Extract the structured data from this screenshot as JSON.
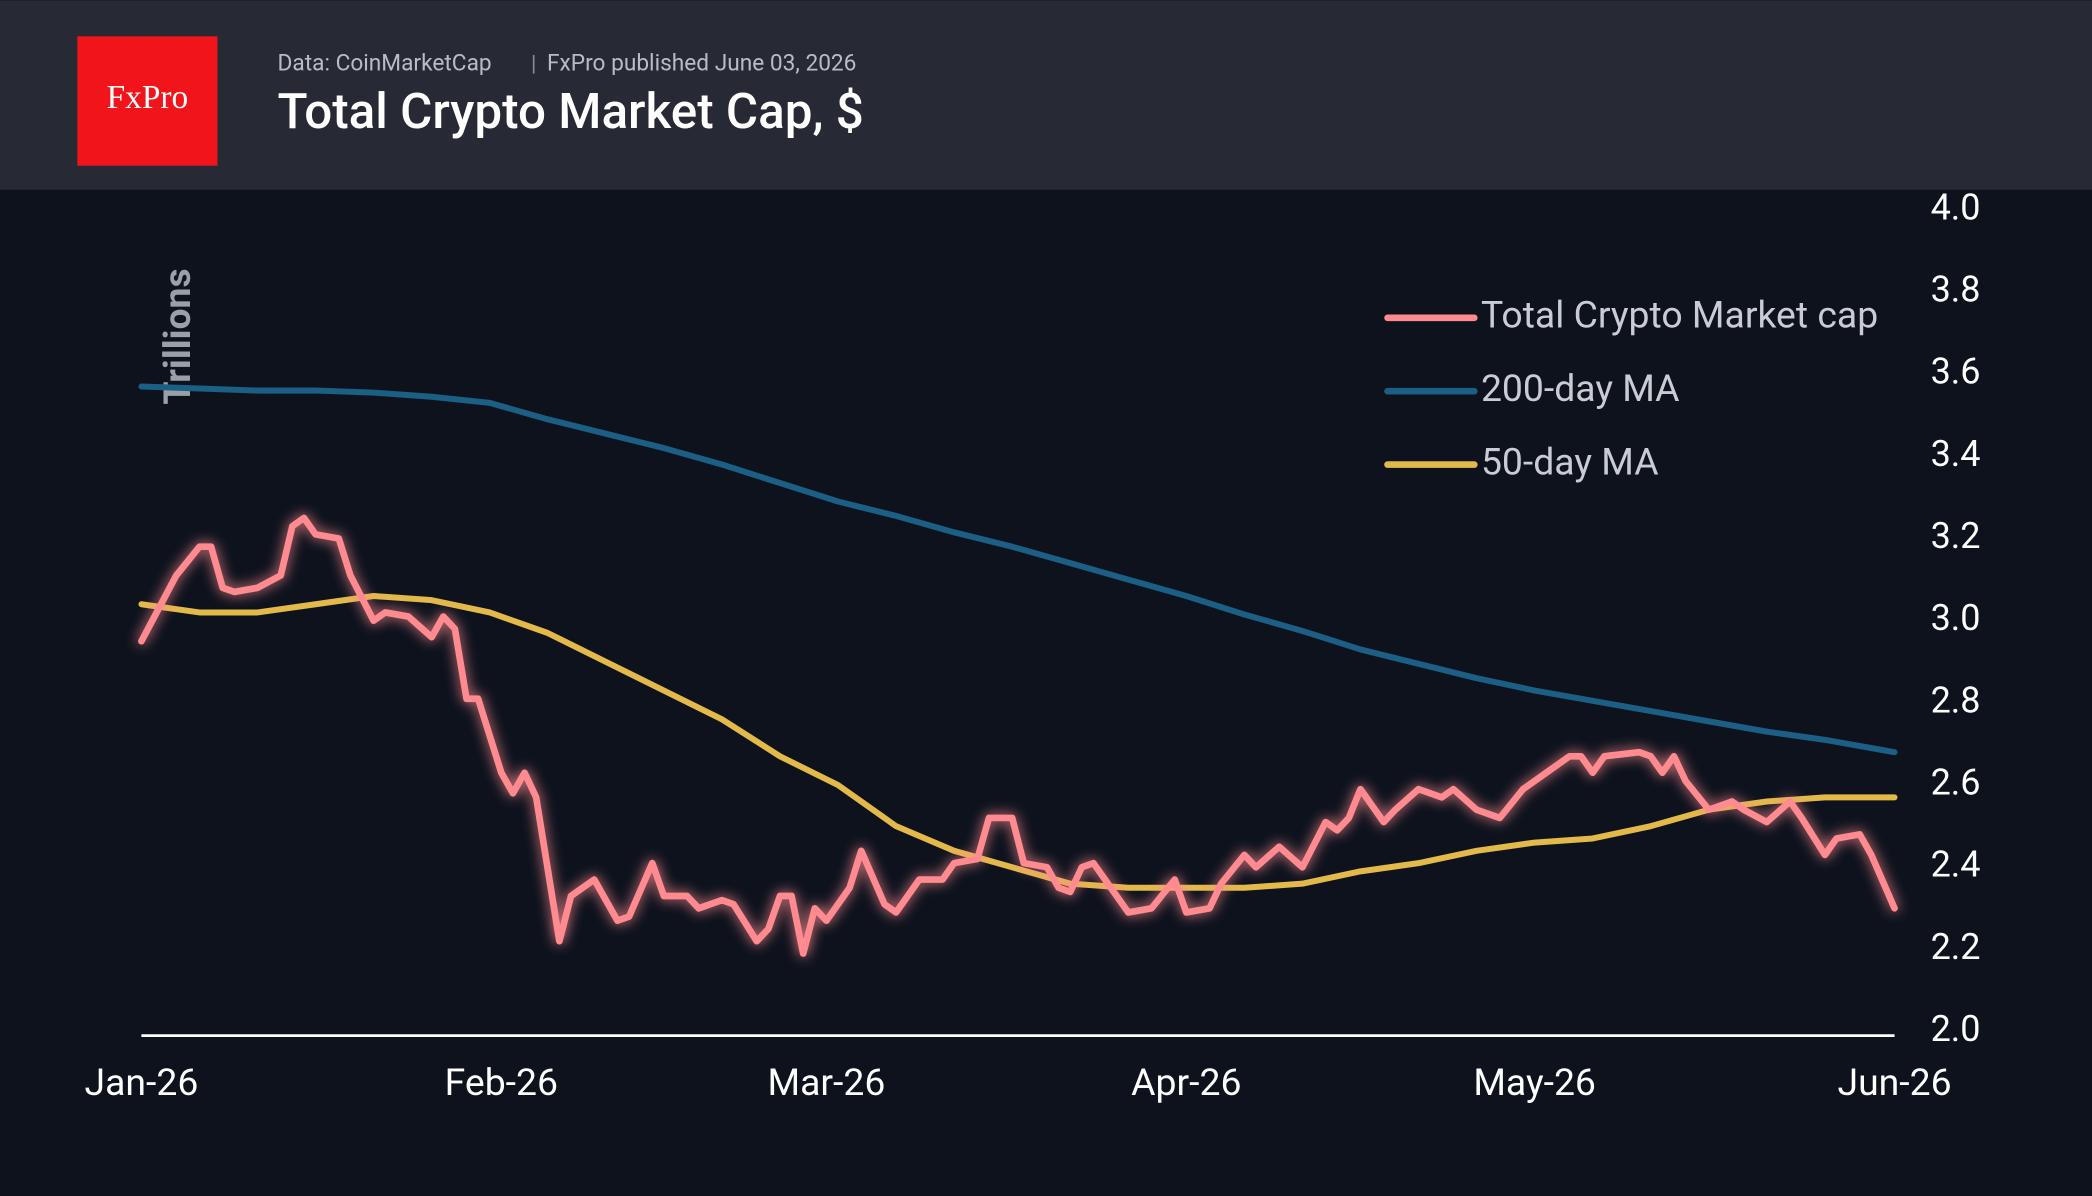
{
  "brand": "FxPro",
  "chart_data": {
    "type": "line",
    "title": "Total Crypto Market Cap, $",
    "source": "Data: CoinMarketCap",
    "subtitle": "FxPro published June 03, 2026",
    "ylabel": "Trillions",
    "xlim": [
      0,
      151
    ],
    "xticks": [
      {
        "value": 0,
        "label": "Jan-26"
      },
      {
        "value": 31,
        "label": "Feb-26"
      },
      {
        "value": 59,
        "label": "Mar-26"
      },
      {
        "value": 90,
        "label": "Apr-26"
      },
      {
        "value": 120,
        "label": "May-26"
      },
      {
        "value": 151,
        "label": "Jun-26"
      }
    ],
    "ylim": [
      2.0,
      4.0
    ],
    "yticks": [
      {
        "value": 2.0,
        "label": "2.0"
      },
      2.2,
      2.4,
      2.6,
      2.8,
      {
        "value": 3.0,
        "label": "3.0"
      },
      3.2,
      3.4,
      3.6,
      3.8,
      {
        "value": 4.0,
        "label": "4.0"
      }
    ],
    "legend": "top-right",
    "series": [
      {
        "name": "Total Crypto Market cap",
        "color": "#ff8a8f",
        "x": [
          0,
          3,
          5,
          6,
          7,
          8,
          10,
          12,
          13,
          14,
          15,
          17,
          18,
          20,
          21,
          23,
          25,
          26,
          27,
          28,
          29,
          31,
          32,
          33,
          34,
          36,
          37,
          39,
          41,
          42,
          44,
          45,
          47,
          48,
          50,
          51,
          53,
          54,
          55,
          56,
          57,
          58,
          59,
          61,
          62,
          64,
          65,
          67,
          69,
          70,
          72,
          73,
          75,
          76,
          78,
          79,
          80,
          81,
          82,
          83,
          85,
          87,
          89,
          90,
          92,
          93,
          95,
          96,
          98,
          100,
          102,
          103,
          104,
          105,
          107,
          108,
          110,
          112,
          113,
          115,
          117,
          119,
          121,
          123,
          124,
          125,
          126,
          129,
          130,
          131,
          132,
          133,
          135,
          137,
          138,
          140,
          142,
          143,
          145,
          146,
          148,
          149,
          151
        ],
        "values": [
          2.95,
          3.11,
          3.18,
          3.18,
          3.08,
          3.07,
          3.08,
          3.11,
          3.23,
          3.25,
          3.21,
          3.2,
          3.11,
          3.0,
          3.02,
          3.01,
          2.96,
          3.01,
          2.98,
          2.81,
          2.81,
          2.63,
          2.58,
          2.63,
          2.57,
          2.22,
          2.33,
          2.37,
          2.27,
          2.28,
          2.41,
          2.33,
          2.33,
          2.3,
          2.32,
          2.31,
          2.22,
          2.25,
          2.33,
          2.33,
          2.19,
          2.3,
          2.27,
          2.35,
          2.44,
          2.31,
          2.29,
          2.37,
          2.37,
          2.41,
          2.42,
          2.52,
          2.52,
          2.41,
          2.4,
          2.35,
          2.34,
          2.4,
          2.41,
          2.37,
          2.29,
          2.3,
          2.37,
          2.29,
          2.3,
          2.36,
          2.43,
          2.4,
          2.45,
          2.4,
          2.51,
          2.49,
          2.52,
          2.59,
          2.51,
          2.54,
          2.59,
          2.57,
          2.59,
          2.54,
          2.52,
          2.59,
          2.63,
          2.67,
          2.67,
          2.63,
          2.67,
          2.68,
          2.67,
          2.63,
          2.67,
          2.61,
          2.54,
          2.56,
          2.54,
          2.51,
          2.56,
          2.52,
          2.43,
          2.47,
          2.48,
          2.43,
          2.3
        ]
      },
      {
        "name": "200-day MA",
        "color": "#1b5f85",
        "x": [
          0,
          5,
          10,
          15,
          20,
          25,
          30,
          35,
          40,
          45,
          50,
          55,
          60,
          65,
          70,
          75,
          80,
          85,
          90,
          95,
          100,
          105,
          110,
          115,
          120,
          125,
          130,
          135,
          140,
          145,
          150,
          151
        ],
        "values": [
          3.57,
          3.565,
          3.56,
          3.56,
          3.555,
          3.545,
          3.53,
          3.49,
          3.455,
          3.42,
          3.38,
          3.335,
          3.29,
          3.255,
          3.215,
          3.18,
          3.14,
          3.1,
          3.06,
          3.015,
          2.975,
          2.93,
          2.895,
          2.86,
          2.83,
          2.805,
          2.78,
          2.755,
          2.73,
          2.71,
          2.685,
          2.68
        ]
      },
      {
        "name": "50-day MA",
        "color": "#e3b94a",
        "x": [
          0,
          5,
          10,
          15,
          20,
          25,
          30,
          35,
          40,
          45,
          50,
          55,
          60,
          65,
          70,
          75,
          80,
          85,
          90,
          95,
          100,
          105,
          110,
          115,
          120,
          125,
          130,
          135,
          140,
          145,
          150,
          151
        ],
        "values": [
          3.04,
          3.02,
          3.02,
          3.04,
          3.06,
          3.05,
          3.02,
          2.97,
          2.9,
          2.83,
          2.76,
          2.67,
          2.6,
          2.5,
          2.44,
          2.4,
          2.36,
          2.35,
          2.35,
          2.35,
          2.36,
          2.39,
          2.41,
          2.44,
          2.46,
          2.47,
          2.5,
          2.54,
          2.56,
          2.57,
          2.57,
          2.57
        ]
      }
    ]
  }
}
